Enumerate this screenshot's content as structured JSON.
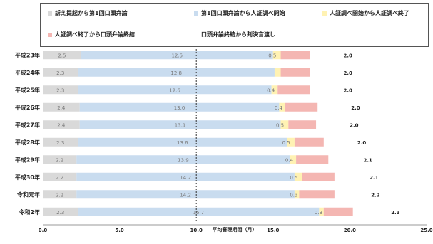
{
  "chart_data": {
    "type": "bar",
    "stacked": true,
    "orientation": "horizontal",
    "title": "",
    "xlabel": "平均審理期間（月）",
    "ylabel": "",
    "xlim": [
      0,
      25
    ],
    "xticks": [
      "0.0",
      "5.0",
      "10.0",
      "15.0",
      "20.0",
      "25.0"
    ],
    "grid": false,
    "legend_position": "top",
    "categories": [
      "平成23年",
      "平成24年",
      "平成25年",
      "平成26年",
      "平成27年",
      "平成28年",
      "平成29年",
      "平成30年",
      "令和元年",
      "令和2年"
    ],
    "series": [
      {
        "name": "訴え提起から第1回口頭弁論",
        "color": "#d9d9d9",
        "values": [
          2.5,
          2.3,
          2.3,
          2.4,
          2.4,
          2.3,
          2.2,
          2.2,
          2.2,
          2.3
        ]
      },
      {
        "name": "第1回口頭弁論から人証調べ開始",
        "color": "#c9dcef",
        "values": [
          12.5,
          12.8,
          12.6,
          13.0,
          13.1,
          13.6,
          13.9,
          14.2,
          14.2,
          15.7
        ]
      },
      {
        "name": "人証調べ開始から人証調べ終了",
        "color": "#fff2b3",
        "values": [
          0.5,
          0.4,
          0.4,
          0.4,
          0.5,
          0.5,
          0.4,
          0.5,
          0.3,
          0.3
        ]
      },
      {
        "name": "人証調べ終了から口頭弁論終結",
        "color": "#f4b6b2",
        "values": [
          1.9,
          1.9,
          2.1,
          2.1,
          1.8,
          1.9,
          2.1,
          2.1,
          2.3,
          1.9
        ]
      },
      {
        "name": "口頭弁論終結から判決言渡し",
        "color": "#ffffff",
        "values": [
          2.0,
          2.0,
          2.0,
          2.0,
          2.0,
          2.0,
          2.1,
          2.1,
          2.2,
          2.3
        ]
      }
    ],
    "data_labels": [
      [
        "2.5",
        "12.5",
        "0.5",
        "",
        "2.0"
      ],
      [
        "2.3",
        "12.8",
        "",
        "",
        "2.0"
      ],
      [
        "2.3",
        "12.6",
        "0.4",
        "",
        "2.0"
      ],
      [
        "2.4",
        "13.0",
        "0.4",
        "",
        "2.0"
      ],
      [
        "2.4",
        "13.1",
        "0.5",
        "",
        "2.0"
      ],
      [
        "2.3",
        "13.6",
        "0.5",
        "",
        "2.0"
      ],
      [
        "2.2",
        "13.9",
        "0.4",
        "",
        "2.1"
      ],
      [
        "2.2",
        "14.2",
        "0.5",
        "",
        "2.1"
      ],
      [
        "2.2",
        "14.2",
        "0.3",
        "",
        "2.2"
      ],
      [
        "2.3",
        "15.7",
        "0.3",
        "",
        "2.3"
      ]
    ]
  }
}
